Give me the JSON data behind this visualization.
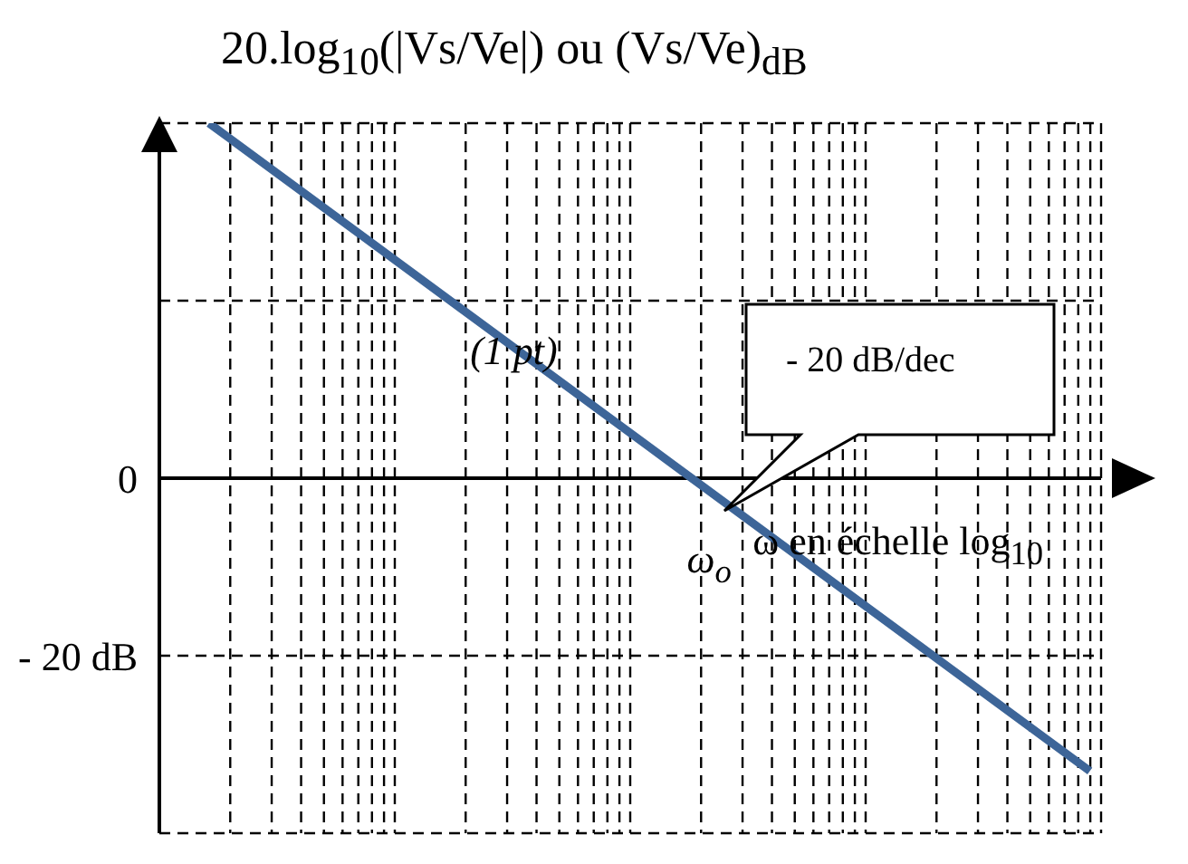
{
  "chart_data": {
    "type": "line",
    "ylabel": "20.log$_{10}$(|Vs/Ve|) ou (Vs/Ve)$_{dB}$",
    "xlabel": "ω en échelle log$_{10}$",
    "annotations": [
      "(1 pt)",
      "ω$_{o}$",
      "- 20 dB/dec"
    ],
    "categories": [
      null,
      null,
      null
    ],
    "series": [
      {
        "color": "#3d6598",
        "values": [
          40,
          3.5,
          -33
        ]
      }
    ],
    "ylim": [
      -40,
      40
    ],
    "yticks": [
      {
        "value": -40,
        "label": null
      },
      {
        "value": -20,
        "label": "- 20 dB"
      },
      0,
      {
        "value": 20,
        "label": null
      },
      {
        "value": 40,
        "label": null
      }
    ],
    "grid": true,
    "marker": "none",
    "line_style": "solid",
    "tick_labels": "y"
  }
}
